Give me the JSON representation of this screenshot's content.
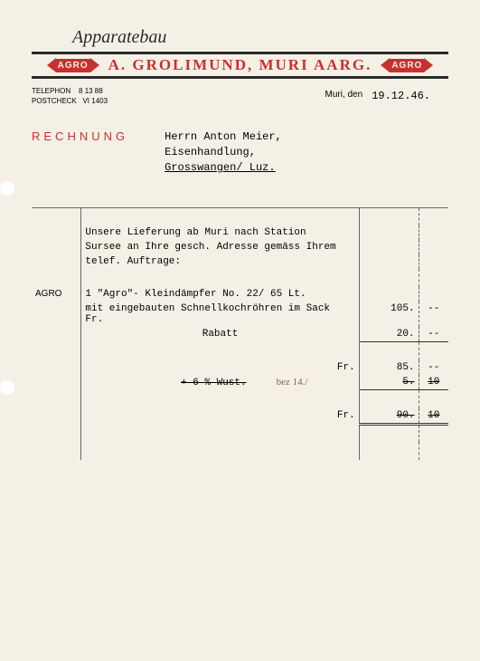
{
  "header": {
    "script_title": "Apparatebau",
    "logo_text": "AGRO",
    "company_name": "A. GROLIMUND, MURI AARG.",
    "telephon_label": "TELEPHON",
    "telephon_value": "8 13 88",
    "postcheck_label": "POSTCHECK",
    "postcheck_value": "VI 1403",
    "date_location": "Muri, den",
    "date_value": "19.12.46."
  },
  "invoice": {
    "title": "RECHNUNG",
    "addressee_line1": "Herrn Anton Meier,",
    "addressee_line2": "Eisenhandlung,",
    "addressee_line3": "Grosswangen/ Luz."
  },
  "body": {
    "side_label": "AGRO",
    "intro_line1": "Unsere Lieferung ab Muri nach Station",
    "intro_line2": "Sursee an Ihre gesch. Adresse gemäss Ihrem",
    "intro_line3": "telef. Auftrage:",
    "item_line": "1 \"Agro\"- Kleindämpfer No. 22/ 65 Lt.",
    "item_detail": "mit eingebauten Schnellkochröhren im Sack",
    "currency": "Fr.",
    "price1": "105.",
    "cents1": "--",
    "rabatt_label": "Rabatt",
    "rabatt_value": "20.",
    "rabatt_cents": "--",
    "subtotal": "85.",
    "subtotal_cents": "--",
    "wust_label": "+ 6 % Wust.",
    "wust_value": "5.",
    "wust_cents": "10",
    "handwritten_note": "bez 14./",
    "total": "90.",
    "total_cents": "10"
  },
  "colors": {
    "accent_red": "#c93030",
    "paper_bg": "#f5f0e6",
    "text_dark": "#2a2a2a",
    "line_gray": "#666",
    "handwritten": "#7a6a50"
  }
}
